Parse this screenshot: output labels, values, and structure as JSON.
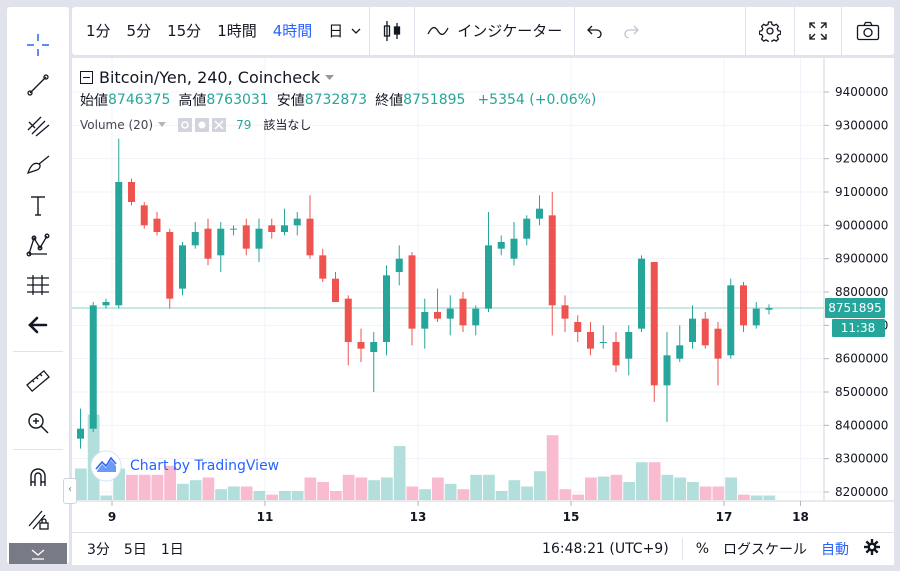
{
  "toolbar": {
    "intervals": [
      "1分",
      "5分",
      "15分",
      "1時間",
      "4時間",
      "日"
    ],
    "active_interval": "4時間",
    "indicators_label": "インジケーター"
  },
  "legend": {
    "symbol": "Bitcoin/Yen, 240, Coincheck",
    "open_label": "始値",
    "open": "8746375",
    "high_label": "高値",
    "high": "8763031",
    "low_label": "安値",
    "low": "8732873",
    "close_label": "終値",
    "close": "8751895",
    "change": "+5354 (+0.06%)",
    "volume_label": "Volume (20)",
    "volume_value": "79",
    "volume_na": "該当なし"
  },
  "watermark": "Chart by TradingView",
  "price_badge": {
    "price": "8751895",
    "countdown": "11:38"
  },
  "bottom": {
    "ranges": [
      "3分",
      "5日",
      "1日"
    ],
    "time": "16:48:21 (UTC+9)",
    "percent": "%",
    "log": "ログスケール",
    "auto": "自動"
  },
  "colors": {
    "up": "#26a69a",
    "down": "#ef5350",
    "up_vol": "#b2dfdb",
    "down_vol": "#f8bbd0",
    "accent": "#2962ff"
  },
  "chart_data": {
    "type": "candlestick",
    "title": "Bitcoin/Yen, 240, Coincheck",
    "y_ticks": [
      8200000,
      8300000,
      8400000,
      8500000,
      8600000,
      8700000,
      8800000,
      8900000,
      9000000,
      9100000,
      9200000,
      9300000,
      9400000
    ],
    "y_range": [
      8180000,
      9470000
    ],
    "x_ticks": [
      "9",
      "11",
      "13",
      "15",
      "17",
      "18"
    ],
    "current_price": 8751895,
    "candles": [
      {
        "o": 8360000,
        "h": 8450000,
        "l": 8330000,
        "c": 8390000,
        "v": 0.35
      },
      {
        "o": 8390000,
        "h": 8770000,
        "l": 8380000,
        "c": 8760000,
        "v": 0.95
      },
      {
        "o": 8760000,
        "h": 8780000,
        "l": 8750000,
        "c": 8770000,
        "v": 0.05
      },
      {
        "o": 8760000,
        "h": 9260000,
        "l": 8750000,
        "c": 9130000,
        "v": 0.35
      },
      {
        "o": 9130000,
        "h": 9140000,
        "l": 9060000,
        "c": 9070000,
        "v": 0.28
      },
      {
        "o": 9060000,
        "h": 9070000,
        "l": 8990000,
        "c": 9000000,
        "v": 0.28
      },
      {
        "o": 9020000,
        "h": 9040000,
        "l": 8970000,
        "c": 8980000,
        "v": 0.28
      },
      {
        "o": 8980000,
        "h": 8990000,
        "l": 8750000,
        "c": 8780000,
        "v": 0.38
      },
      {
        "o": 8810000,
        "h": 8950000,
        "l": 8790000,
        "c": 8940000,
        "v": 0.18
      },
      {
        "o": 8940000,
        "h": 9010000,
        "l": 8930000,
        "c": 8980000,
        "v": 0.22
      },
      {
        "o": 8990000,
        "h": 9020000,
        "l": 8880000,
        "c": 8900000,
        "v": 0.25
      },
      {
        "o": 8910000,
        "h": 9010000,
        "l": 8860000,
        "c": 8990000,
        "v": 0.12
      },
      {
        "o": 8990000,
        "h": 9000000,
        "l": 8970000,
        "c": 8990000,
        "v": 0.15
      },
      {
        "o": 9000000,
        "h": 9020000,
        "l": 8910000,
        "c": 8930000,
        "v": 0.15
      },
      {
        "o": 8930000,
        "h": 9020000,
        "l": 8890000,
        "c": 8990000,
        "v": 0.1
      },
      {
        "o": 9000000,
        "h": 9020000,
        "l": 8960000,
        "c": 8980000,
        "v": 0.06
      },
      {
        "o": 8980000,
        "h": 9050000,
        "l": 8970000,
        "c": 9000000,
        "v": 0.1
      },
      {
        "o": 9000000,
        "h": 9040000,
        "l": 8970000,
        "c": 9020000,
        "v": 0.1
      },
      {
        "o": 9020000,
        "h": 9090000,
        "l": 8900000,
        "c": 8910000,
        "v": 0.25
      },
      {
        "o": 8910000,
        "h": 8930000,
        "l": 8830000,
        "c": 8840000,
        "v": 0.2
      },
      {
        "o": 8840000,
        "h": 8860000,
        "l": 8770000,
        "c": 8770000,
        "v": 0.1
      },
      {
        "o": 8780000,
        "h": 8790000,
        "l": 8580000,
        "c": 8650000,
        "v": 0.28
      },
      {
        "o": 8650000,
        "h": 8690000,
        "l": 8590000,
        "c": 8630000,
        "v": 0.25
      },
      {
        "o": 8620000,
        "h": 8680000,
        "l": 8500000,
        "c": 8650000,
        "v": 0.22
      },
      {
        "o": 8650000,
        "h": 8880000,
        "l": 8610000,
        "c": 8850000,
        "v": 0.25
      },
      {
        "o": 8860000,
        "h": 8940000,
        "l": 8820000,
        "c": 8900000,
        "v": 0.6
      },
      {
        "o": 8910000,
        "h": 8920000,
        "l": 8640000,
        "c": 8690000,
        "v": 0.15
      },
      {
        "o": 8690000,
        "h": 8780000,
        "l": 8630000,
        "c": 8740000,
        "v": 0.12
      },
      {
        "o": 8740000,
        "h": 8810000,
        "l": 8710000,
        "c": 8720000,
        "v": 0.25
      },
      {
        "o": 8720000,
        "h": 8790000,
        "l": 8670000,
        "c": 8750000,
        "v": 0.18
      },
      {
        "o": 8780000,
        "h": 8800000,
        "l": 8680000,
        "c": 8700000,
        "v": 0.12
      },
      {
        "o": 8700000,
        "h": 8760000,
        "l": 8670000,
        "c": 8750000,
        "v": 0.28
      },
      {
        "o": 8750000,
        "h": 9040000,
        "l": 8740000,
        "c": 8940000,
        "v": 0.28
      },
      {
        "o": 8930000,
        "h": 8970000,
        "l": 8910000,
        "c": 8950000,
        "v": 0.1
      },
      {
        "o": 8900000,
        "h": 9010000,
        "l": 8880000,
        "c": 8960000,
        "v": 0.22
      },
      {
        "o": 8960000,
        "h": 9030000,
        "l": 8940000,
        "c": 9020000,
        "v": 0.15
      },
      {
        "o": 9020000,
        "h": 9090000,
        "l": 9000000,
        "c": 9050000,
        "v": 0.32
      },
      {
        "o": 9030000,
        "h": 9100000,
        "l": 8670000,
        "c": 8760000,
        "v": 0.72
      },
      {
        "o": 8760000,
        "h": 8790000,
        "l": 8680000,
        "c": 8720000,
        "v": 0.12
      },
      {
        "o": 8710000,
        "h": 8730000,
        "l": 8650000,
        "c": 8680000,
        "v": 0.06
      },
      {
        "o": 8680000,
        "h": 8710000,
        "l": 8610000,
        "c": 8630000,
        "v": 0.25
      },
      {
        "o": 8650000,
        "h": 8700000,
        "l": 8630000,
        "c": 8650000,
        "v": 0.26
      },
      {
        "o": 8650000,
        "h": 8680000,
        "l": 8560000,
        "c": 8580000,
        "v": 0.28
      },
      {
        "o": 8600000,
        "h": 8700000,
        "l": 8550000,
        "c": 8680000,
        "v": 0.2
      },
      {
        "o": 8690000,
        "h": 8910000,
        "l": 8680000,
        "c": 8900000,
        "v": 0.42
      },
      {
        "o": 8890000,
        "h": 8890000,
        "l": 8470000,
        "c": 8520000,
        "v": 0.42
      },
      {
        "o": 8520000,
        "h": 8680000,
        "l": 8410000,
        "c": 8610000,
        "v": 0.28
      },
      {
        "o": 8600000,
        "h": 8700000,
        "l": 8590000,
        "c": 8640000,
        "v": 0.25
      },
      {
        "o": 8650000,
        "h": 8760000,
        "l": 8630000,
        "c": 8720000,
        "v": 0.2
      },
      {
        "o": 8720000,
        "h": 8740000,
        "l": 8630000,
        "c": 8640000,
        "v": 0.15
      },
      {
        "o": 8690000,
        "h": 8710000,
        "l": 8520000,
        "c": 8600000,
        "v": 0.15
      },
      {
        "o": 8610000,
        "h": 8840000,
        "l": 8600000,
        "c": 8820000,
        "v": 0.25
      },
      {
        "o": 8820000,
        "h": 8830000,
        "l": 8680000,
        "c": 8700000,
        "v": 0.06
      },
      {
        "o": 8700000,
        "h": 8770000,
        "l": 8690000,
        "c": 8750000,
        "v": 0.05
      },
      {
        "o": 8747000,
        "h": 8763000,
        "l": 8733000,
        "c": 8751900,
        "v": 0.05
      }
    ]
  }
}
